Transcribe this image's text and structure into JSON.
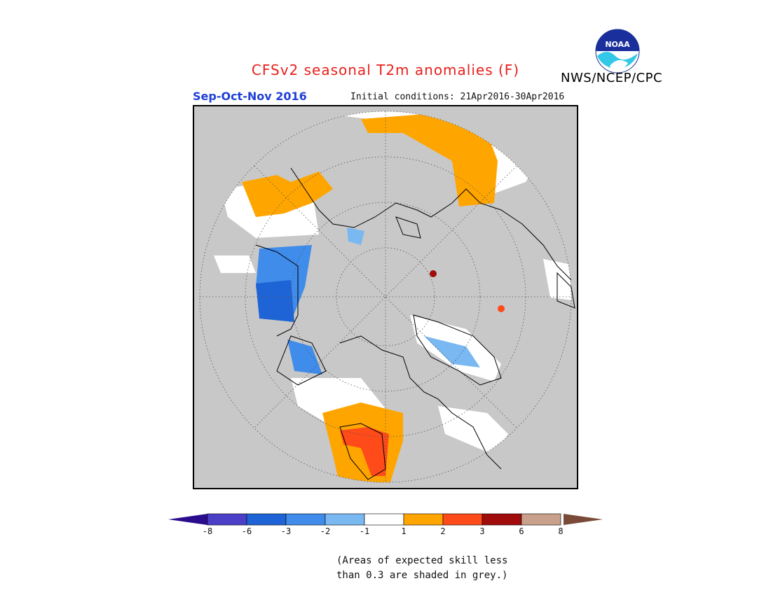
{
  "header": {
    "title": "CFSv2 seasonal T2m anomalies (F)",
    "agency": "NWS/NCEP/CPC",
    "season": "Sep-Oct-Nov 2016",
    "initial_conditions": "Initial conditions: 21Apr2016-30Apr2016",
    "logo_text": "NOAA"
  },
  "legend": {
    "tick_labels": [
      "-8",
      "-6",
      "-3",
      "-2",
      "-1",
      "1",
      "2",
      "3",
      "6",
      "8"
    ],
    "colors": [
      "#4b3fc8",
      "#1f64d6",
      "#3f8cea",
      "#7ab8f2",
      "#ffffff",
      "#ffa500",
      "#ff4a1a",
      "#a00c0c",
      "#c9a08c"
    ],
    "low_arrow_color": "#2a0c8c",
    "high_arrow_color": "#7a4a38"
  },
  "note": {
    "line1": "(Areas of expected skill less",
    "line2": "than 0.3 are shaded in grey.)"
  },
  "colors": {
    "skill_grey": "#c8c8c8",
    "title_red": "#e8201a",
    "season_blue": "#1f3fd6"
  }
}
